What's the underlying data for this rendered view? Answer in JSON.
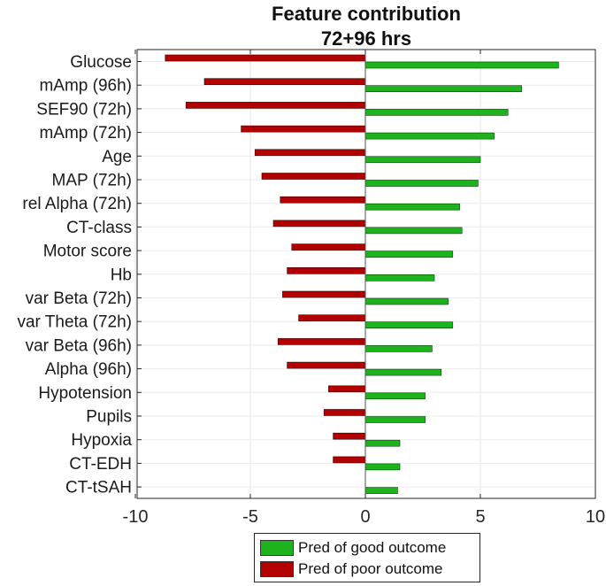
{
  "chart_data": {
    "type": "bar",
    "orientation": "horizontal",
    "title": "Feature contribution",
    "subtitle": "72+96 hrs",
    "xlabel": "",
    "ylabel": "",
    "xlim": [
      -10,
      10
    ],
    "xticks": [
      "-10",
      "-5",
      "0",
      "5",
      "10"
    ],
    "xtick_values": [
      -10,
      -5,
      0,
      5,
      10
    ],
    "grid": true,
    "legend_position": "bottom",
    "categories": [
      "Glucose",
      "mAmp (96h)",
      "SEF90 (72h)",
      "mAmp (72h)",
      "Age",
      "MAP (72h)",
      "rel Alpha (72h)",
      "CT-class",
      "Motor score",
      "Hb",
      "var Beta (72h)",
      "var Theta (72h)",
      "var Beta (96h)",
      "Alpha (96h)",
      "Hypotension",
      "Pupils",
      "Hypoxia",
      "CT-EDH",
      "CT-tSAH"
    ],
    "series": [
      {
        "name": "Pred of good outcome",
        "color": "#1db31d",
        "values": [
          8.4,
          6.8,
          6.2,
          5.6,
          5.0,
          4.9,
          4.1,
          4.2,
          3.8,
          3.0,
          3.6,
          3.8,
          2.9,
          3.3,
          2.6,
          2.6,
          1.5,
          1.5,
          1.4
        ]
      },
      {
        "name": "Pred of poor outcome",
        "color": "#b30000",
        "values": [
          -8.7,
          -7.0,
          -7.8,
          -5.4,
          -4.8,
          -4.5,
          -3.7,
          -4.0,
          -3.2,
          -3.4,
          -3.6,
          -2.9,
          -3.8,
          -3.4,
          -1.6,
          -1.8,
          -1.4,
          -1.4,
          0
        ]
      }
    ]
  }
}
